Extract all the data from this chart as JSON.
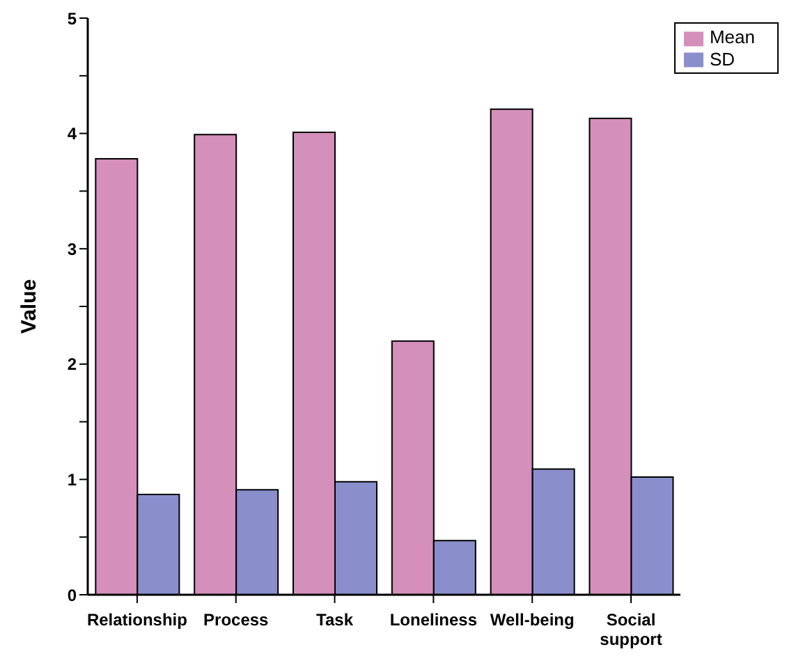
{
  "chart_data": {
    "type": "bar",
    "ylabel": "Value",
    "categories": [
      "Relationship",
      "Process",
      "Task",
      "Loneliness",
      "Well-being",
      "Social support"
    ],
    "series": [
      {
        "name": "Mean",
        "color": "#d48fba",
        "values": [
          3.78,
          3.99,
          4.01,
          2.2,
          4.21,
          4.13
        ]
      },
      {
        "name": "SD",
        "color": "#8a8fcc",
        "values": [
          0.87,
          0.91,
          0.98,
          0.47,
          1.09,
          1.02
        ]
      }
    ],
    "ylim": [
      0,
      5
    ],
    "yticks": [
      0,
      {
        "value": 0.5,
        "label": null
      },
      1,
      {
        "value": 1.5,
        "label": null
      },
      2,
      {
        "value": 2.5,
        "label": null
      },
      3,
      {
        "value": 3.5,
        "label": null
      },
      4,
      {
        "value": 4.5,
        "label": null
      },
      5
    ],
    "grid": false,
    "legend": "top right"
  }
}
